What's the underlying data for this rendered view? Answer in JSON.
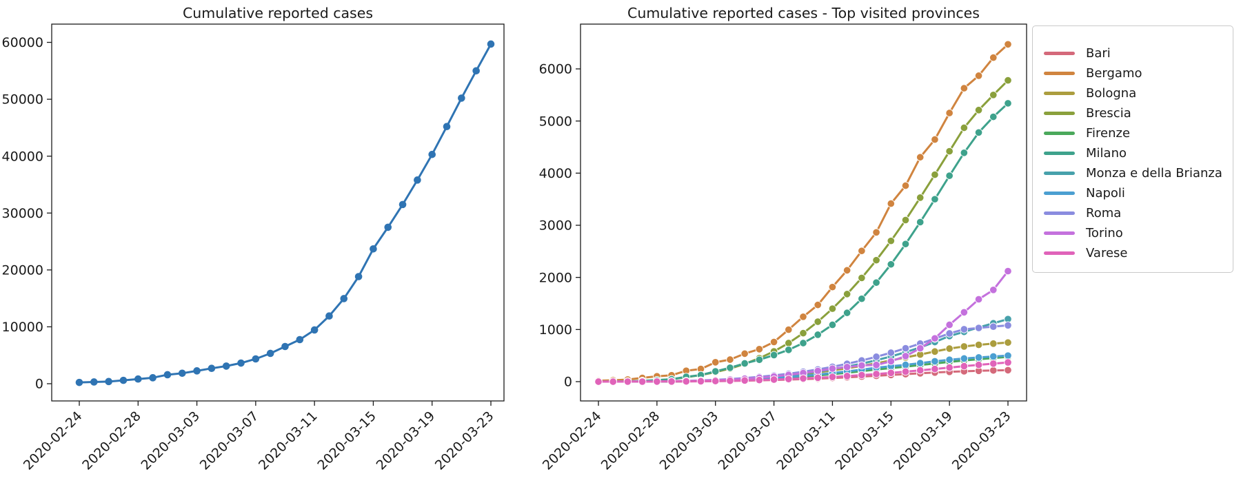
{
  "figure": {
    "background": "#ffffff",
    "text_color": "#1a1a1a",
    "axis_color": "#1a1a1a"
  },
  "chart_data": [
    {
      "type": "line",
      "title": "Cumulative reported cases",
      "grid": false,
      "legend_position": "none",
      "marker": "circle",
      "x": [
        "2020-02-24",
        "2020-02-25",
        "2020-02-26",
        "2020-02-27",
        "2020-02-28",
        "2020-02-29",
        "2020-03-01",
        "2020-03-02",
        "2020-03-03",
        "2020-03-04",
        "2020-03-05",
        "2020-03-06",
        "2020-03-07",
        "2020-03-08",
        "2020-03-09",
        "2020-03-10",
        "2020-03-11",
        "2020-03-12",
        "2020-03-13",
        "2020-03-14",
        "2020-03-15",
        "2020-03-16",
        "2020-03-17",
        "2020-03-18",
        "2020-03-19",
        "2020-03-20",
        "2020-03-21",
        "2020-03-22",
        "2020-03-23"
      ],
      "xtick_indices": [
        0,
        4,
        8,
        12,
        16,
        20,
        24,
        28
      ],
      "xtick_labels": [
        "2020-02-24",
        "2020-02-28",
        "2020-03-03",
        "2020-03-07",
        "2020-03-11",
        "2020-03-15",
        "2020-03-19",
        "2020-03-23"
      ],
      "ytick_values": [
        0,
        10000,
        20000,
        30000,
        40000,
        50000,
        60000
      ],
      "ytick_labels": [
        "0",
        "10000",
        "20000",
        "30000",
        "40000",
        "50000",
        "60000"
      ],
      "ylim": [
        0,
        63000
      ],
      "series": [
        {
          "name": "Cumulative reported cases",
          "color": "#2f74b3",
          "values": [
            220,
            310,
            385,
            590,
            820,
            1050,
            1580,
            1840,
            2260,
            2700,
            3100,
            3630,
            4360,
            5330,
            6540,
            7750,
            9450,
            11900,
            14960,
            18830,
            23700,
            27500,
            31500,
            35800,
            40300,
            45200,
            50200,
            55000,
            59700
          ]
        }
      ]
    },
    {
      "type": "line",
      "title": "Cumulative reported cases - Top visited provinces",
      "grid": false,
      "legend_position": "upper right outside",
      "marker": "circle",
      "x": [
        "2020-02-24",
        "2020-02-25",
        "2020-02-26",
        "2020-02-27",
        "2020-02-28",
        "2020-02-29",
        "2020-03-01",
        "2020-03-02",
        "2020-03-03",
        "2020-03-04",
        "2020-03-05",
        "2020-03-06",
        "2020-03-07",
        "2020-03-08",
        "2020-03-09",
        "2020-03-10",
        "2020-03-11",
        "2020-03-12",
        "2020-03-13",
        "2020-03-14",
        "2020-03-15",
        "2020-03-16",
        "2020-03-17",
        "2020-03-18",
        "2020-03-19",
        "2020-03-20",
        "2020-03-21",
        "2020-03-22",
        "2020-03-23"
      ],
      "xtick_indices": [
        0,
        4,
        8,
        12,
        16,
        20,
        24,
        28
      ],
      "xtick_labels": [
        "2020-02-24",
        "2020-02-28",
        "2020-03-03",
        "2020-03-07",
        "2020-03-11",
        "2020-03-15",
        "2020-03-19",
        "2020-03-23"
      ],
      "ytick_values": [
        0,
        1000,
        2000,
        3000,
        4000,
        5000,
        6000
      ],
      "ytick_labels": [
        "0",
        "1000",
        "2000",
        "3000",
        "4000",
        "5000",
        "6000"
      ],
      "ylim": [
        0,
        6800
      ],
      "series": [
        {
          "name": "Bari",
          "color": "#d4697a",
          "values": [
            0,
            0,
            0,
            1,
            1,
            2,
            4,
            6,
            9,
            13,
            18,
            24,
            31,
            39,
            48,
            58,
            70,
            83,
            97,
            112,
            128,
            144,
            160,
            175,
            188,
            199,
            208,
            215,
            220
          ]
        },
        {
          "name": "Bergamo",
          "color": "#d0843f",
          "values": [
            18,
            27,
            40,
            72,
            103,
            123,
            209,
            243,
            372,
            423,
            537,
            623,
            761,
            997,
            1245,
            1472,
            1815,
            2136,
            2508,
            2864,
            3416,
            3760,
            4305,
            4645,
            5154,
            5629,
            5869,
            6216,
            6471
          ]
        },
        {
          "name": "Bologna",
          "color": "#ab9d3e",
          "values": [
            0,
            0,
            1,
            2,
            4,
            7,
            11,
            17,
            26,
            38,
            52,
            70,
            91,
            116,
            145,
            178,
            215,
            256,
            302,
            352,
            406,
            464,
            520,
            578,
            634,
            675,
            706,
            730,
            750
          ]
        },
        {
          "name": "Brescia",
          "color": "#8aa03c",
          "values": [
            0,
            1,
            6,
            14,
            27,
            48,
            84,
            127,
            182,
            250,
            340,
            450,
            580,
            740,
            930,
            1150,
            1400,
            1680,
            1990,
            2330,
            2700,
            3100,
            3530,
            3970,
            4420,
            4870,
            5210,
            5500,
            5780
          ]
        },
        {
          "name": "Firenze",
          "color": "#4aa85b",
          "values": [
            0,
            0,
            0,
            1,
            2,
            4,
            7,
            11,
            17,
            25,
            35,
            47,
            61,
            78,
            97,
            119,
            143,
            170,
            200,
            233,
            260,
            288,
            318,
            348,
            378,
            406,
            430,
            452,
            475
          ]
        },
        {
          "name": "Milano",
          "color": "#3ea28c",
          "values": [
            0,
            0,
            3,
            15,
            29,
            46,
            93,
            126,
            197,
            267,
            350,
            420,
            510,
            610,
            740,
            900,
            1090,
            1320,
            1590,
            1900,
            2250,
            2640,
            3060,
            3500,
            3950,
            4390,
            4780,
            5080,
            5340
          ]
        },
        {
          "name": "Monza e della Brianza",
          "color": "#47a1ab",
          "values": [
            0,
            0,
            1,
            2,
            4,
            7,
            11,
            17,
            26,
            38,
            53,
            72,
            95,
            123,
            156,
            194,
            238,
            288,
            345,
            410,
            483,
            565,
            657,
            760,
            875,
            955,
            1040,
            1120,
            1200
          ]
        },
        {
          "name": "Napoli",
          "color": "#4b9fd1",
          "values": [
            0,
            0,
            1,
            2,
            3,
            5,
            9,
            14,
            21,
            30,
            41,
            55,
            71,
            90,
            112,
            137,
            165,
            196,
            230,
            267,
            295,
            322,
            356,
            390,
            420,
            444,
            464,
            483,
            500
          ]
        },
        {
          "name": "Roma",
          "color": "#8a8cdf",
          "values": [
            2,
            3,
            3,
            4,
            6,
            9,
            14,
            23,
            34,
            50,
            70,
            93,
            120,
            152,
            190,
            234,
            285,
            342,
            406,
            477,
            555,
            640,
            730,
            825,
            925,
            1005,
            1030,
            1055,
            1080
          ]
        },
        {
          "name": "Torino",
          "color": "#c471dd",
          "values": [
            1,
            1,
            2,
            3,
            5,
            8,
            13,
            19,
            28,
            40,
            56,
            76,
            100,
            130,
            165,
            205,
            250,
            280,
            310,
            320,
            390,
            490,
            640,
            830,
            1090,
            1330,
            1580,
            1760,
            2120
          ]
        },
        {
          "name": "Varese",
          "color": "#e063b9",
          "values": [
            0,
            0,
            1,
            1,
            2,
            3,
            5,
            8,
            12,
            17,
            23,
            31,
            40,
            50,
            62,
            75,
            90,
            107,
            126,
            146,
            168,
            192,
            217,
            243,
            270,
            297,
            322,
            346,
            368
          ]
        }
      ]
    }
  ]
}
